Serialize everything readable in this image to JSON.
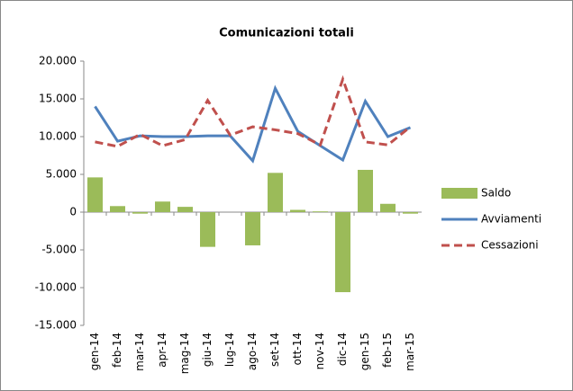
{
  "chart_data": {
    "type": "bar",
    "title": "Comunicazioni totali",
    "categories": [
      "gen-14",
      "feb-14",
      "mar-14",
      "apr-14",
      "mag-14",
      "giu-14",
      "lug-14",
      "ago-14",
      "set-14",
      "ott-14",
      "nov-14",
      "dic-14",
      "gen-15",
      "feb-15",
      "mar-15"
    ],
    "series": [
      {
        "name": "Saldo",
        "type": "bar",
        "color": "#9bbb59",
        "values": [
          4600,
          800,
          -200,
          1400,
          700,
          -4600,
          0,
          -4400,
          5200,
          300,
          100,
          -10600,
          5600,
          1100,
          -200
        ]
      },
      {
        "name": "Avviamenti",
        "type": "line",
        "color": "#4f81bd",
        "dashed": false,
        "values": [
          14000,
          9400,
          10100,
          10000,
          10000,
          10100,
          10100,
          6800,
          16400,
          10700,
          8800,
          6900,
          14700,
          10000,
          11200
        ]
      },
      {
        "name": "Cessazioni",
        "type": "line",
        "color": "#c0504d",
        "dashed": true,
        "values": [
          9300,
          8700,
          10300,
          8800,
          9600,
          14800,
          10200,
          11300,
          10900,
          10400,
          8900,
          17600,
          9300,
          8900,
          11300
        ]
      }
    ],
    "ylim": [
      -15000,
      20000
    ],
    "yticks": [
      {
        "value": -15000,
        "label": "-15.000"
      },
      {
        "value": -10000,
        "label": "-10.000"
      },
      {
        "value": -5000,
        "label": "-5.000"
      },
      0,
      {
        "value": 5000,
        "label": "5.000"
      },
      {
        "value": 10000,
        "label": "10.000"
      },
      {
        "value": 15000,
        "label": "15.000"
      },
      {
        "value": 20000,
        "label": "20.000"
      }
    ],
    "grid": false,
    "legend": "right"
  }
}
